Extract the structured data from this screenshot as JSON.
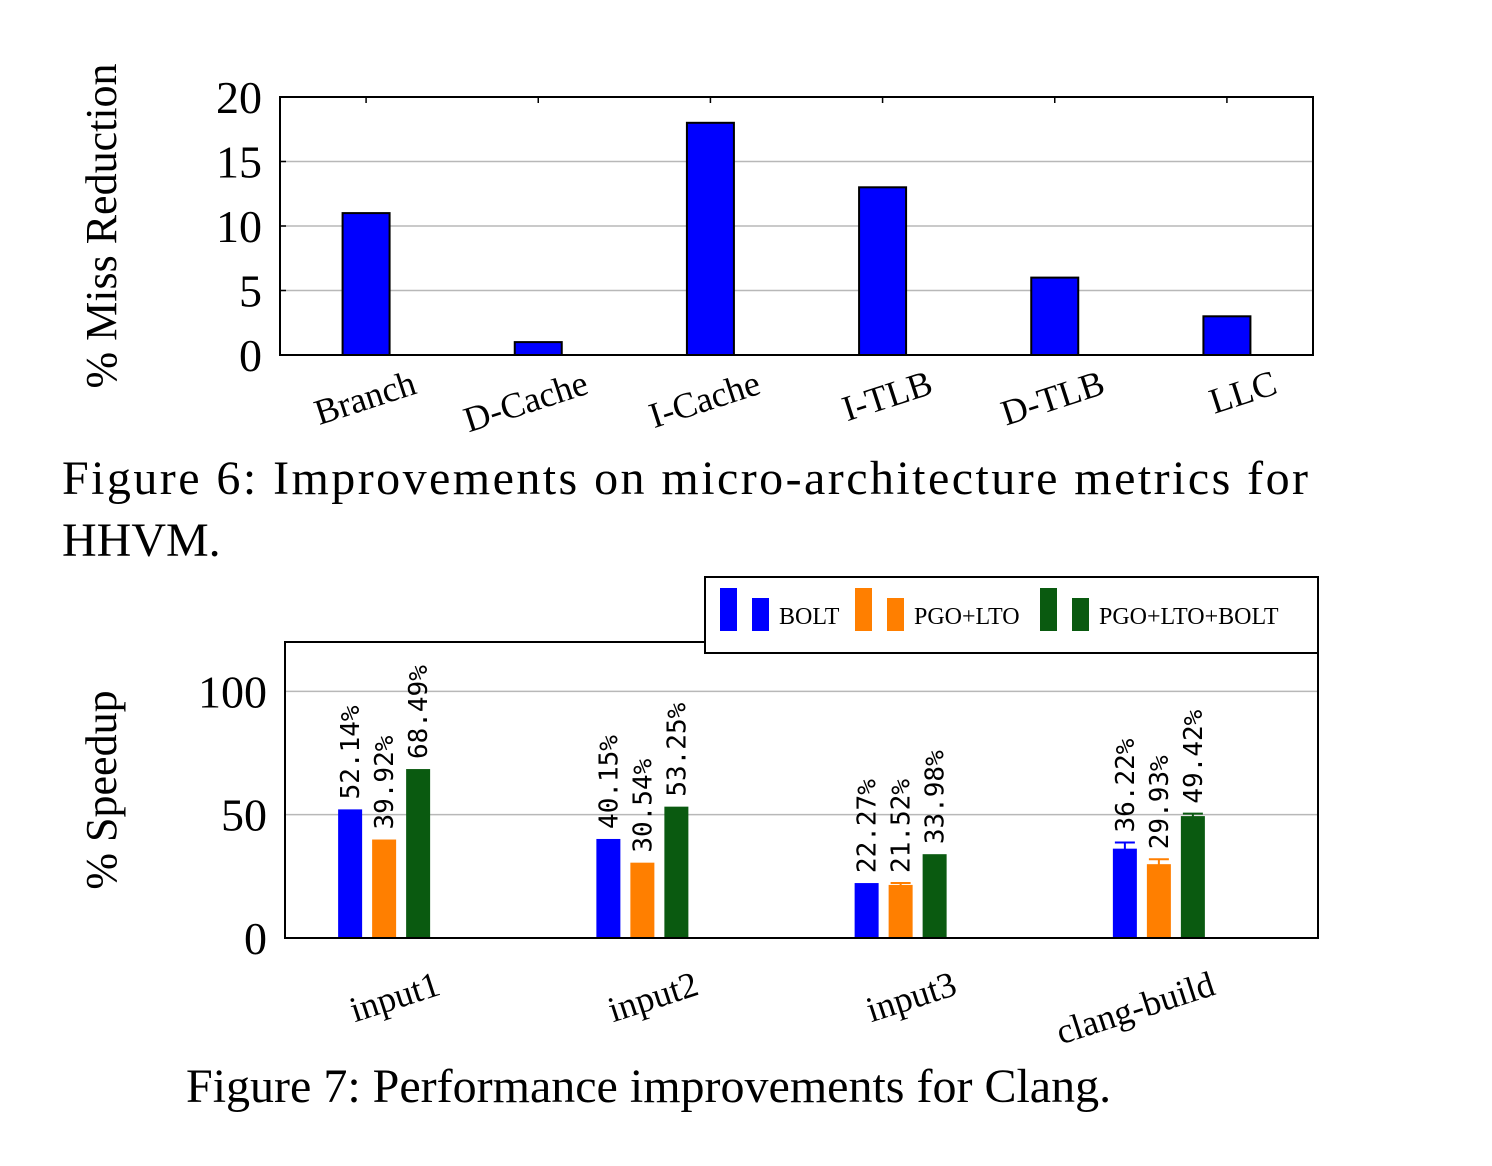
{
  "figure6": {
    "caption_line1": "Figure 6: Improvements on micro-architecture metrics for",
    "caption_line2": "HHVM."
  },
  "figure7": {
    "caption": "Figure 7: Performance improvements for Clang."
  },
  "chart_data": [
    {
      "type": "bar",
      "title": "",
      "xlabel": "",
      "ylabel": "% Miss Reduction",
      "categories": [
        "Branch",
        "D-Cache",
        "I-Cache",
        "I-TLB",
        "D-TLB",
        "LLC"
      ],
      "values": [
        11,
        1,
        18,
        13,
        6,
        3
      ],
      "ylim": [
        0,
        20
      ],
      "yticks": [
        0,
        5,
        10,
        15,
        20
      ],
      "grid": true,
      "colors": {
        "bar": "#0000ff"
      }
    },
    {
      "type": "bar",
      "title": "",
      "xlabel": "",
      "ylabel": "% Speedup",
      "categories": [
        "input1",
        "input2",
        "input3",
        "clang-build"
      ],
      "series": [
        {
          "name": "BOLT",
          "color": "#0000ff",
          "values": [
            52.14,
            40.15,
            22.27,
            36.22
          ],
          "labels": [
            "52.14%",
            "40.15%",
            "22.27%",
            "36.22%"
          ],
          "errors": [
            0,
            0,
            0,
            2.5
          ]
        },
        {
          "name": "PGO+LTO",
          "color": "#ff7f00",
          "values": [
            39.92,
            30.54,
            21.52,
            29.93
          ],
          "labels": [
            "39.92%",
            "30.54%",
            "21.52%",
            "29.93%"
          ],
          "errors": [
            0,
            0,
            0.8,
            2.0
          ]
        },
        {
          "name": "PGO+LTO+BOLT",
          "color": "#0a5a10",
          "values": [
            68.49,
            53.25,
            33.98,
            49.42
          ],
          "labels": [
            "68.49%",
            "53.25%",
            "33.98%",
            "49.42%"
          ],
          "errors": [
            0,
            0,
            0,
            1.0
          ]
        }
      ],
      "ylim": [
        0,
        120
      ],
      "yticks": [
        0,
        50,
        100
      ],
      "grid": true,
      "legend": "top-right"
    }
  ]
}
